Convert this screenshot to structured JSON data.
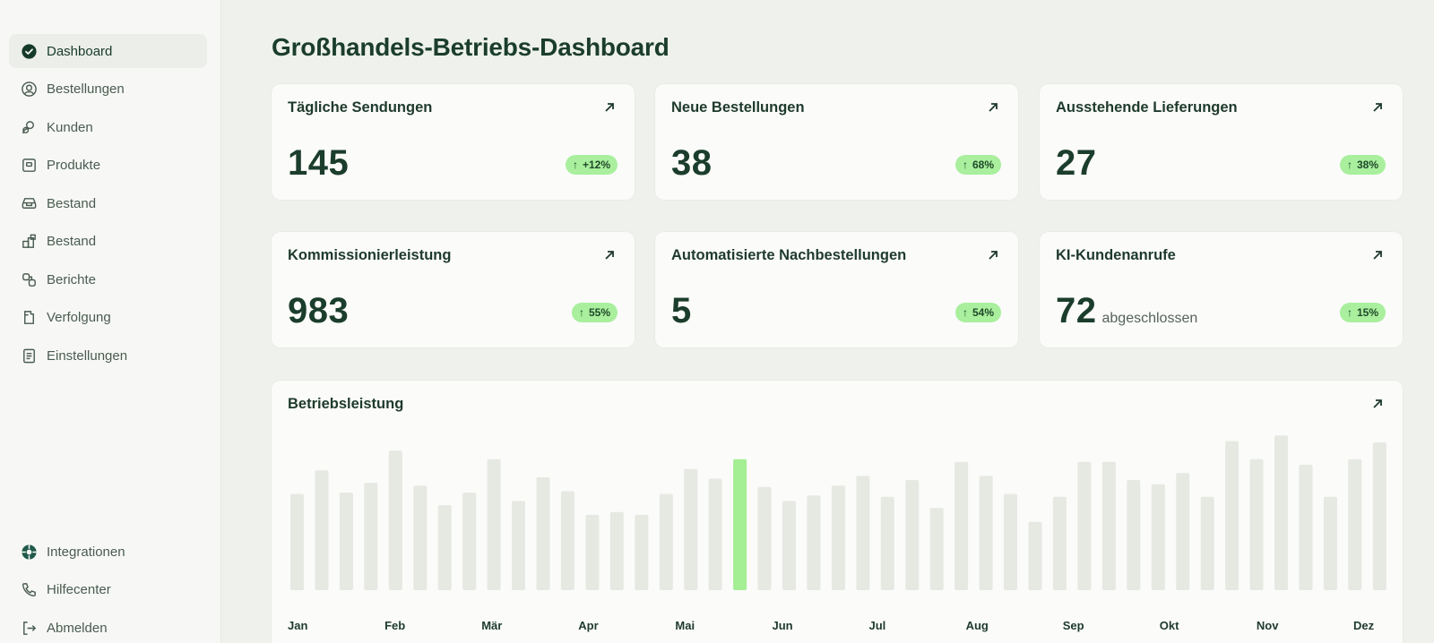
{
  "sidebar": {
    "items": [
      {
        "label": "Dashboard",
        "icon": "check-circle-icon",
        "active": true
      },
      {
        "label": "Bestellungen",
        "icon": "user-circle-icon"
      },
      {
        "label": "Kunden",
        "icon": "users-icon"
      },
      {
        "label": "Produkte",
        "icon": "product-icon"
      },
      {
        "label": "Bestand",
        "icon": "inventory-icon"
      },
      {
        "label": "Bestand",
        "icon": "boxes-icon"
      },
      {
        "label": "Berichte",
        "icon": "report-icon"
      },
      {
        "label": "Verfolgung",
        "icon": "tracking-icon"
      },
      {
        "label": "Einstellungen",
        "icon": "settings-doc-icon"
      }
    ],
    "bottom": [
      {
        "label": "Integrationen",
        "icon": "integrations-icon"
      },
      {
        "label": "Hilfecenter",
        "icon": "phone-icon"
      },
      {
        "label": "Abmelden",
        "icon": "logout-icon"
      }
    ]
  },
  "page_title": "Großhandels-Betriebs-Dashboard",
  "kpis": [
    {
      "title": "Tägliche Sendungen",
      "value": "145",
      "suffix": "",
      "change": "+12%"
    },
    {
      "title": "Neue Bestellungen",
      "value": "38",
      "suffix": "",
      "change": "68%"
    },
    {
      "title": "Ausstehende Lieferungen",
      "value": "27",
      "suffix": "",
      "change": "38%"
    },
    {
      "title": "Kommissionierleistung",
      "value": "983",
      "suffix": "",
      "change": "55%"
    },
    {
      "title": "Automatisierte Nachbestellungen",
      "value": "5",
      "suffix": "",
      "change": "54%"
    },
    {
      "title": "KI-Kundenanrufe",
      "value": "72",
      "suffix": "abgeschlossen",
      "change": "15%"
    }
  ],
  "colors": {
    "accent": "#a4ee94",
    "bar": "#e6e9e2",
    "badge": "#a9ef9d",
    "text": "#1b3d2c"
  },
  "chart_data": {
    "type": "bar",
    "title": "Betriebsleistung",
    "x_ticks": [
      "Jan",
      "Feb",
      "Mär",
      "Apr",
      "Mai",
      "Jun",
      "Jul",
      "Aug",
      "Sep",
      "Okt",
      "Nov",
      "Dez"
    ],
    "values": [
      69,
      86,
      70,
      77,
      100,
      75,
      61,
      70,
      94,
      64,
      81,
      71,
      54,
      56,
      54,
      69,
      87,
      80,
      94,
      74,
      64,
      68,
      75,
      82,
      67,
      79,
      59,
      92,
      82,
      69,
      49,
      67,
      92,
      92,
      79,
      76,
      84,
      67,
      107,
      94,
      111,
      90,
      67,
      94,
      106
    ],
    "highlight_index": 18,
    "ylim": [
      0,
      115
    ]
  }
}
